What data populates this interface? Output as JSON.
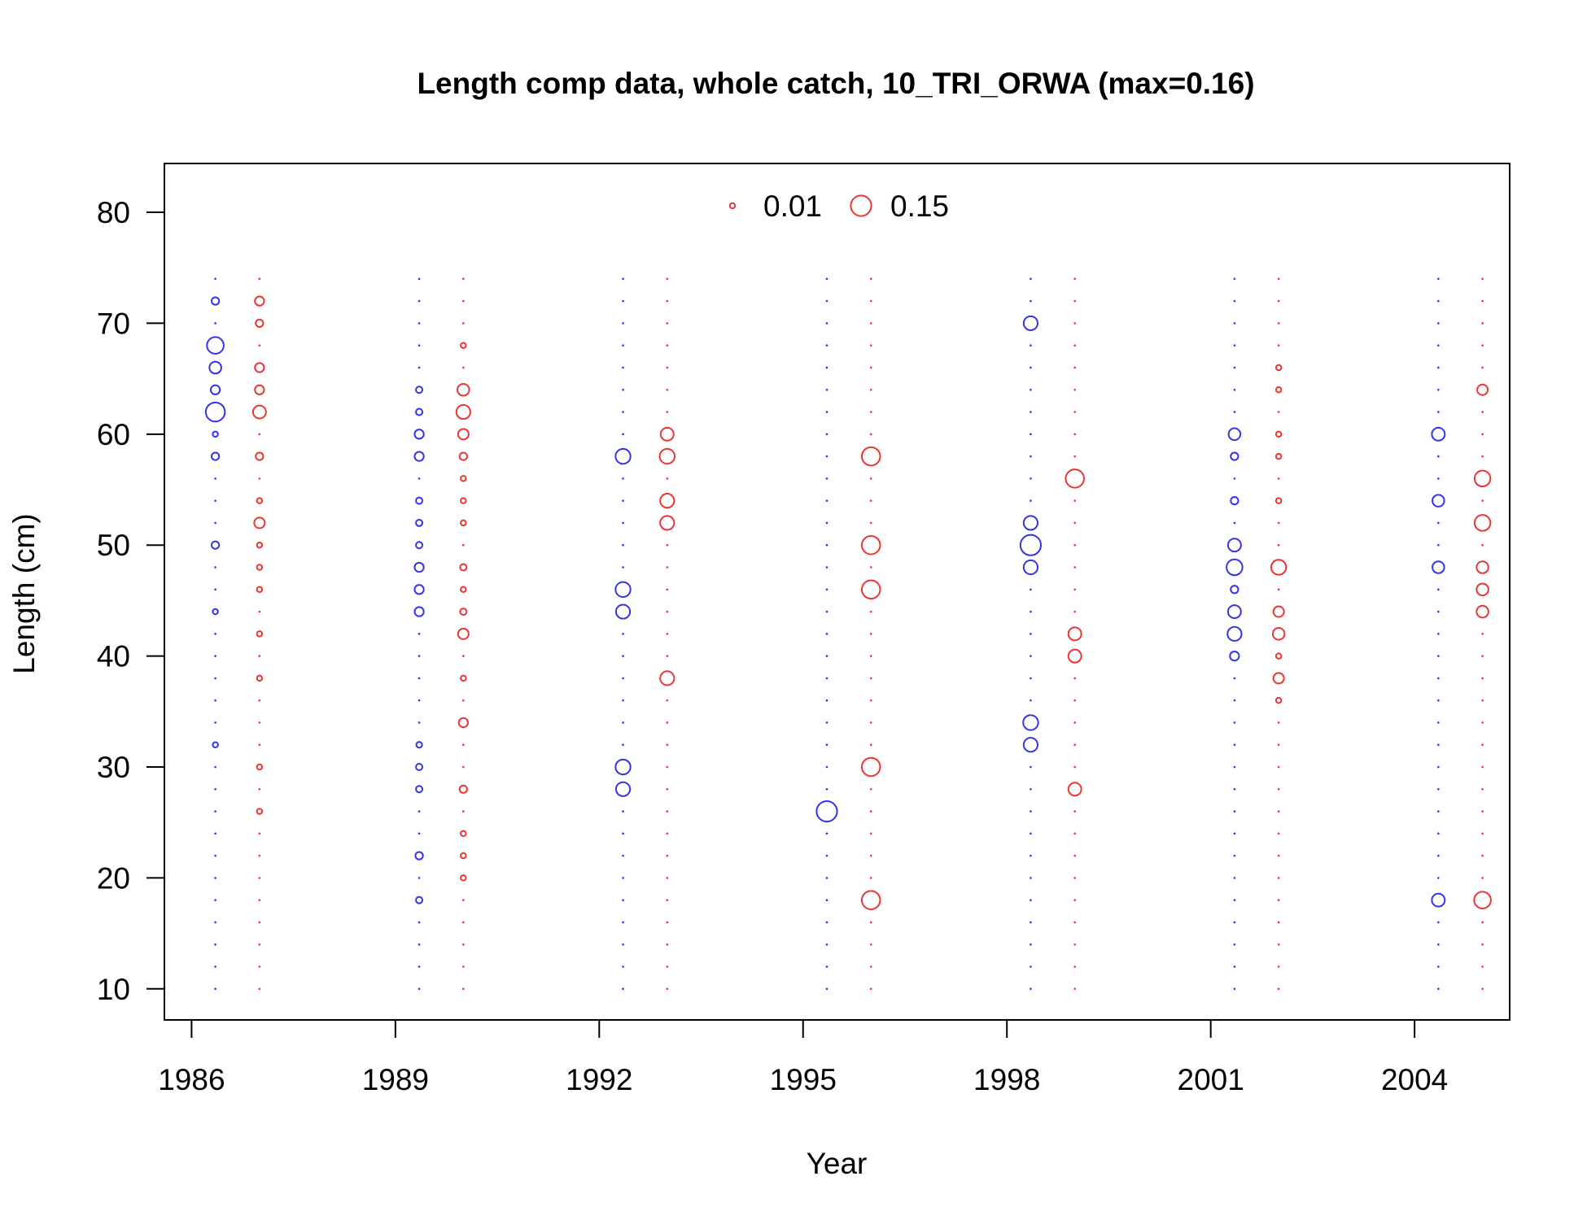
{
  "chart_data": {
    "type": "scatter",
    "title": "Length comp data, whole catch, 10_TRI_ORWA (max=0.16)",
    "xlabel": "Year",
    "ylabel": "Length (cm)",
    "xlim": [
      1985.6,
      2005.4
    ],
    "ylim": [
      7.2,
      84.4
    ],
    "x_ticks": [
      1986,
      1989,
      1992,
      1995,
      1998,
      2001,
      2004
    ],
    "y_ticks": [
      10,
      20,
      30,
      40,
      50,
      60,
      70,
      80
    ],
    "length_bins": [
      10,
      12,
      14,
      16,
      18,
      20,
      22,
      24,
      26,
      28,
      30,
      32,
      34,
      36,
      38,
      40,
      42,
      44,
      46,
      48,
      50,
      52,
      54,
      56,
      58,
      60,
      62,
      64,
      66,
      68,
      70,
      72,
      74
    ],
    "max_proportion": 0.16,
    "years": [
      1986,
      1989,
      1992,
      1995,
      1998,
      2001,
      2004
    ],
    "legend": {
      "position": "top",
      "entries": [
        {
          "label": "0.01",
          "value": 0.01,
          "color": "#ee3333"
        },
        {
          "label": "0.15",
          "value": 0.15,
          "color": "#ee3333"
        }
      ]
    },
    "series": [
      {
        "sex": "female",
        "color": "#3333ee",
        "x_offset": 0.35,
        "points": [
          {
            "year": 1986,
            "values": {
              "32": 0.01,
              "44": 0.01,
              "50": 0.02,
              "58": 0.02,
              "60": 0.01,
              "62": 0.13,
              "64": 0.03,
              "66": 0.05,
              "68": 0.1,
              "72": 0.02
            }
          },
          {
            "year": 1989,
            "values": {
              "18": 0.015,
              "22": 0.02,
              "28": 0.015,
              "30": 0.015,
              "32": 0.012,
              "44": 0.03,
              "46": 0.03,
              "48": 0.03,
              "50": 0.015,
              "52": 0.015,
              "54": 0.015,
              "58": 0.03,
              "60": 0.03,
              "62": 0.015,
              "64": 0.015
            }
          },
          {
            "year": 1992,
            "values": {
              "28": 0.07,
              "30": 0.08,
              "44": 0.07,
              "46": 0.08,
              "58": 0.08
            }
          },
          {
            "year": 1995,
            "values": {
              "26": 0.15
            }
          },
          {
            "year": 1998,
            "values": {
              "32": 0.07,
              "34": 0.08,
              "48": 0.07,
              "50": 0.15,
              "52": 0.07,
              "70": 0.07
            }
          },
          {
            "year": 2001,
            "values": {
              "40": 0.03,
              "42": 0.07,
              "44": 0.06,
              "46": 0.02,
              "48": 0.09,
              "50": 0.06,
              "54": 0.02,
              "58": 0.02,
              "60": 0.05
            }
          },
          {
            "year": 2004,
            "values": {
              "18": 0.06,
              "48": 0.05,
              "54": 0.05,
              "60": 0.06
            }
          }
        ]
      },
      {
        "sex": "male",
        "color": "#ee3333",
        "x_offset": 1.0,
        "points": [
          {
            "year": 1986,
            "values": {
              "26": 0.01,
              "30": 0.01,
              "38": 0.01,
              "42": 0.01,
              "46": 0.01,
              "48": 0.01,
              "50": 0.01,
              "52": 0.04,
              "54": 0.01,
              "58": 0.02,
              "62": 0.06,
              "64": 0.03,
              "66": 0.03,
              "70": 0.02,
              "72": 0.03
            }
          },
          {
            "year": 1989,
            "values": {
              "20": 0.01,
              "22": 0.01,
              "24": 0.01,
              "28": 0.02,
              "34": 0.03,
              "38": 0.01,
              "42": 0.04,
              "44": 0.015,
              "46": 0.01,
              "48": 0.015,
              "52": 0.01,
              "54": 0.01,
              "56": 0.01,
              "58": 0.02,
              "60": 0.04,
              "62": 0.07,
              "64": 0.05,
              "68": 0.01
            }
          },
          {
            "year": 1992,
            "values": {
              "38": 0.07,
              "52": 0.07,
              "54": 0.07,
              "58": 0.08,
              "60": 0.06
            }
          },
          {
            "year": 1995,
            "values": {
              "18": 0.12,
              "30": 0.12,
              "46": 0.12,
              "50": 0.12,
              "58": 0.12
            }
          },
          {
            "year": 1998,
            "values": {
              "28": 0.06,
              "40": 0.06,
              "42": 0.06,
              "56": 0.12
            }
          },
          {
            "year": 2001,
            "values": {
              "36": 0.01,
              "38": 0.04,
              "40": 0.01,
              "42": 0.05,
              "44": 0.04,
              "48": 0.08,
              "54": 0.01,
              "58": 0.01,
              "60": 0.01,
              "64": 0.01,
              "66": 0.01
            }
          },
          {
            "year": 2004,
            "values": {
              "18": 0.1,
              "44": 0.05,
              "46": 0.05,
              "48": 0.05,
              "52": 0.09,
              "56": 0.09,
              "64": 0.04
            }
          }
        ]
      }
    ]
  }
}
